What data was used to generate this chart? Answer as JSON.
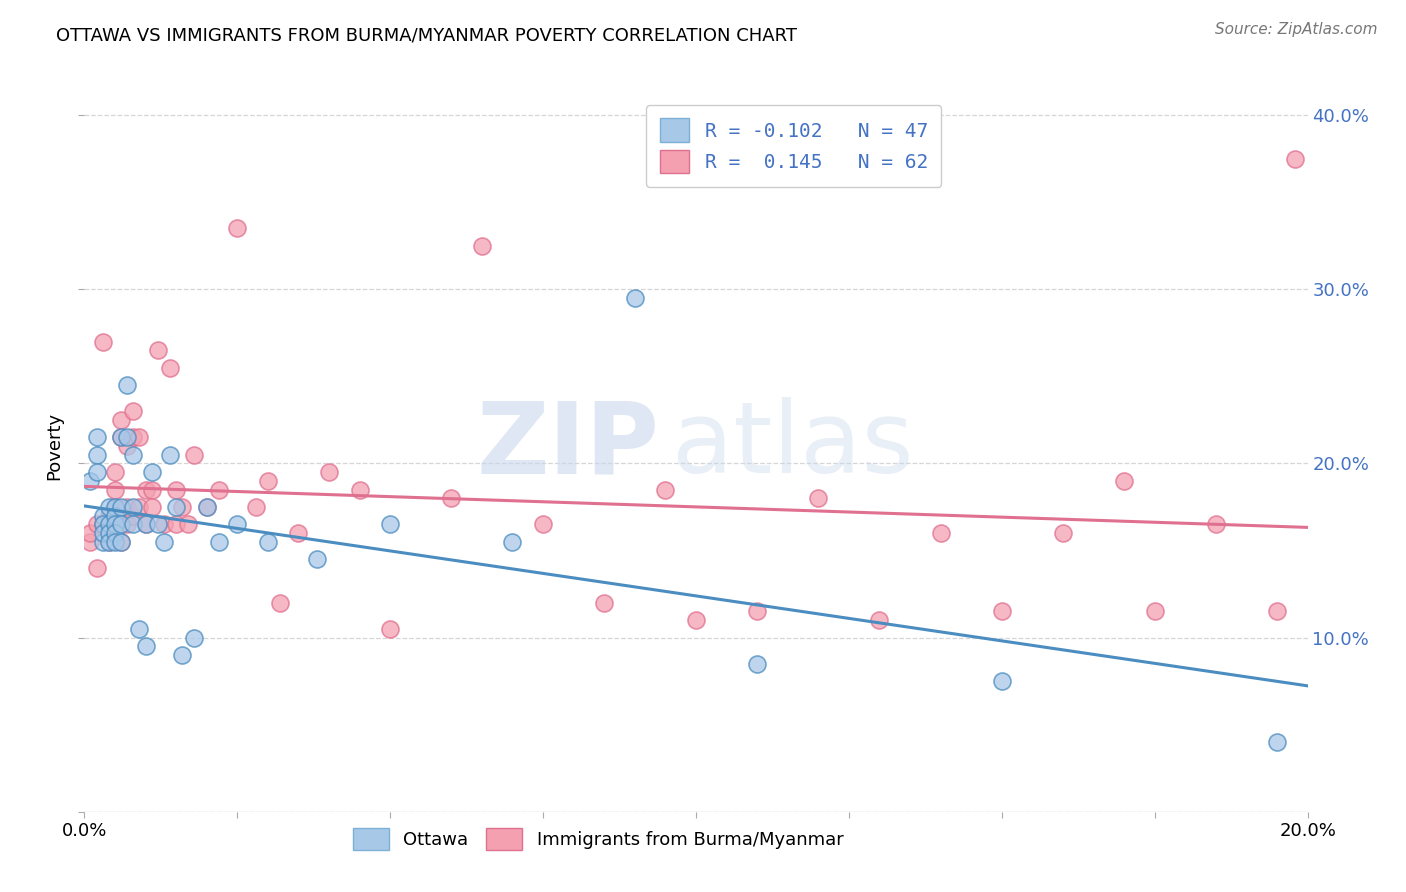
{
  "title": "OTTAWA VS IMMIGRANTS FROM BURMA/MYANMAR POVERTY CORRELATION CHART",
  "source": "Source: ZipAtlas.com",
  "ylabel": "Poverty",
  "xlim": [
    0.0,
    0.2
  ],
  "ylim": [
    0.0,
    0.42
  ],
  "color_blue": "#A8C8E8",
  "color_pink": "#F4A0B0",
  "line_blue": "#4B8DC0",
  "line_pink": "#E07090",
  "watermark_zip": "ZIP",
  "watermark_atlas": "atlas",
  "ottawa_x": [
    0.001,
    0.002,
    0.002,
    0.002,
    0.003,
    0.003,
    0.003,
    0.003,
    0.004,
    0.004,
    0.004,
    0.004,
    0.005,
    0.005,
    0.005,
    0.005,
    0.005,
    0.006,
    0.006,
    0.006,
    0.006,
    0.007,
    0.007,
    0.008,
    0.008,
    0.008,
    0.009,
    0.01,
    0.01,
    0.011,
    0.012,
    0.013,
    0.014,
    0.015,
    0.016,
    0.018,
    0.02,
    0.022,
    0.025,
    0.03,
    0.038,
    0.05,
    0.07,
    0.09,
    0.11,
    0.15,
    0.195
  ],
  "ottawa_y": [
    0.19,
    0.215,
    0.205,
    0.195,
    0.155,
    0.17,
    0.165,
    0.16,
    0.165,
    0.175,
    0.16,
    0.155,
    0.175,
    0.17,
    0.165,
    0.16,
    0.155,
    0.215,
    0.175,
    0.165,
    0.155,
    0.245,
    0.215,
    0.205,
    0.175,
    0.165,
    0.105,
    0.095,
    0.165,
    0.195,
    0.165,
    0.155,
    0.205,
    0.175,
    0.09,
    0.1,
    0.175,
    0.155,
    0.165,
    0.155,
    0.145,
    0.165,
    0.155,
    0.295,
    0.085,
    0.075,
    0.04
  ],
  "burma_x": [
    0.001,
    0.001,
    0.002,
    0.002,
    0.003,
    0.003,
    0.004,
    0.004,
    0.004,
    0.005,
    0.005,
    0.005,
    0.006,
    0.006,
    0.006,
    0.007,
    0.007,
    0.007,
    0.008,
    0.008,
    0.008,
    0.009,
    0.009,
    0.01,
    0.01,
    0.011,
    0.011,
    0.012,
    0.013,
    0.014,
    0.015,
    0.015,
    0.016,
    0.017,
    0.018,
    0.02,
    0.022,
    0.025,
    0.028,
    0.03,
    0.032,
    0.035,
    0.04,
    0.045,
    0.05,
    0.06,
    0.065,
    0.075,
    0.085,
    0.095,
    0.1,
    0.11,
    0.12,
    0.13,
    0.14,
    0.15,
    0.16,
    0.17,
    0.175,
    0.185,
    0.195,
    0.198
  ],
  "burma_y": [
    0.155,
    0.16,
    0.165,
    0.14,
    0.27,
    0.165,
    0.17,
    0.165,
    0.155,
    0.195,
    0.185,
    0.175,
    0.225,
    0.215,
    0.155,
    0.175,
    0.21,
    0.165,
    0.23,
    0.215,
    0.17,
    0.215,
    0.175,
    0.185,
    0.165,
    0.185,
    0.175,
    0.265,
    0.165,
    0.255,
    0.185,
    0.165,
    0.175,
    0.165,
    0.205,
    0.175,
    0.185,
    0.335,
    0.175,
    0.19,
    0.12,
    0.16,
    0.195,
    0.185,
    0.105,
    0.18,
    0.325,
    0.165,
    0.12,
    0.185,
    0.11,
    0.115,
    0.18,
    0.11,
    0.16,
    0.115,
    0.16,
    0.19,
    0.115,
    0.165,
    0.115,
    0.375
  ],
  "legend_text1": "R = -0.102   N = 47",
  "legend_text2": "R =  0.145   N = 62"
}
